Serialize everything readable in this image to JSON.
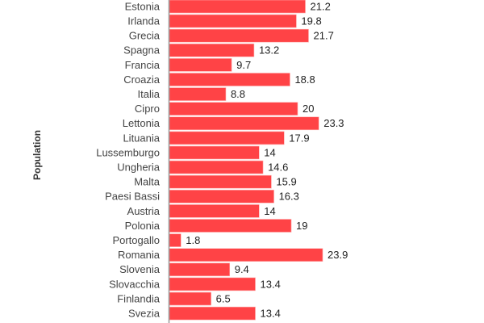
{
  "chart_data": {
    "type": "bar",
    "orientation": "horizontal",
    "title": "",
    "xlabel": "",
    "ylabel": "Population",
    "categories": [
      "Estonia",
      "Irlanda",
      "Grecia",
      "Spagna",
      "Francia",
      "Croazia",
      "Italia",
      "Cipro",
      "Lettonia",
      "Lituania",
      "Lussemburgo",
      "Ungheria",
      "Malta",
      "Paesi Bassi",
      "Austria",
      "Polonia",
      "Portogallo",
      "Romania",
      "Slovenia",
      "Slovacchia",
      "Finlandia",
      "Svezia"
    ],
    "values": [
      21.2,
      19.8,
      21.7,
      13.2,
      9.7,
      18.8,
      8.8,
      20,
      23.3,
      17.9,
      14,
      14.6,
      15.9,
      16.3,
      14,
      19,
      1.8,
      23.9,
      9.4,
      13.4,
      6.5,
      13.4
    ],
    "bar_color": "#FF4346",
    "grid": false,
    "legend": "none"
  }
}
